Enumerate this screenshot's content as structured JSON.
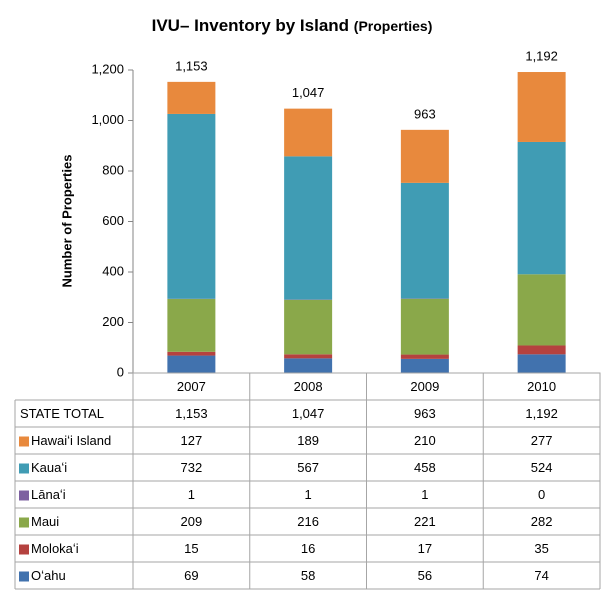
{
  "chart_data": {
    "type": "stacked_bar",
    "title": "IVU– Inventory by Island",
    "subtitle": "(Properties)",
    "y_label": "Number of Properties",
    "categories": [
      "2007",
      "2008",
      "2009",
      "2010"
    ],
    "total_row_label": "STATE TOTAL",
    "totals": [
      1153,
      1047,
      963,
      1192
    ],
    "total_labels": [
      "1,153",
      "1,047",
      "963",
      "1,192"
    ],
    "series": [
      {
        "name": "Hawaiʻi Island",
        "color": "#e8893d",
        "values": [
          127,
          189,
          210,
          277
        ]
      },
      {
        "name": "Kauaʻi",
        "color": "#409cb4",
        "values": [
          732,
          567,
          458,
          524
        ]
      },
      {
        "name": "Lānaʻi",
        "color": "#7d60a0",
        "values": [
          1,
          1,
          1,
          0
        ]
      },
      {
        "name": "Maui",
        "color": "#8aa84a",
        "values": [
          209,
          216,
          221,
          282
        ]
      },
      {
        "name": "Molokaʻi",
        "color": "#b5423f",
        "values": [
          15,
          16,
          17,
          35
        ]
      },
      {
        "name": "Oʻahu",
        "color": "#4172ae",
        "values": [
          69,
          58,
          56,
          74
        ]
      }
    ],
    "ylim": [
      0,
      1200
    ],
    "yticks": [
      0,
      200,
      400,
      600,
      800,
      {
        "value": 1000,
        "label": "1,000"
      },
      {
        "value": 1200,
        "label": "1,200"
      }
    ]
  }
}
